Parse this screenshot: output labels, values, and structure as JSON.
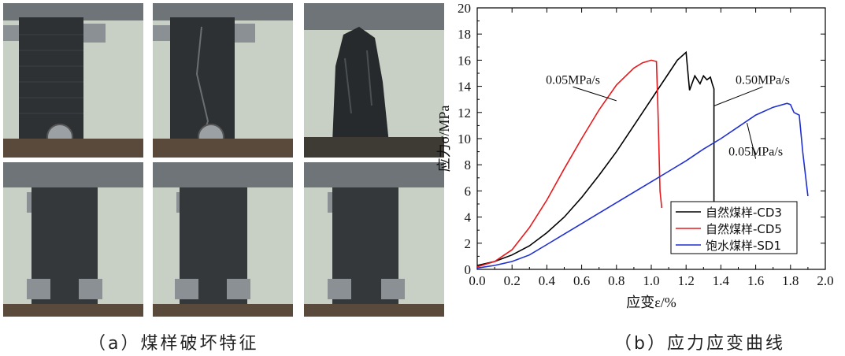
{
  "panel_a": {
    "caption": "（a）煤样破坏特征"
  },
  "panel_b": {
    "caption": "（b）应力应变曲线"
  },
  "colors": {
    "bg_wall": "#c8cfc4",
    "steel": "#6e7478",
    "coal": "#2e3134",
    "base": "#5a4a3c"
  },
  "chart_data": {
    "type": "line",
    "xlabel": "应变ε/%",
    "ylabel": "应力σ/MPa",
    "xlim": [
      0.0,
      2.0
    ],
    "ylim": [
      0,
      20
    ],
    "xticks": [
      "0.0",
      "0.2",
      "0.4",
      "0.6",
      "0.8",
      "1.0",
      "1.2",
      "1.4",
      "1.6",
      "1.8",
      "2.0"
    ],
    "yticks": [
      "0",
      "2",
      "4",
      "6",
      "8",
      "10",
      "12",
      "14",
      "16",
      "18",
      "20"
    ],
    "legend_position": "bottom-right",
    "series": [
      {
        "name": "自然煤样-CD3",
        "color": "#000000",
        "x": [
          0.0,
          0.1,
          0.2,
          0.3,
          0.4,
          0.5,
          0.6,
          0.7,
          0.8,
          0.9,
          1.0,
          1.1,
          1.15,
          1.2,
          1.22,
          1.25,
          1.28,
          1.3,
          1.32,
          1.34,
          1.35,
          1.36,
          1.36
        ],
        "y": [
          0.3,
          0.6,
          1.1,
          1.8,
          2.8,
          4.0,
          5.5,
          7.2,
          9.0,
          11.0,
          13.0,
          15.0,
          16.0,
          16.6,
          13.7,
          14.8,
          14.2,
          14.8,
          14.5,
          14.7,
          14.2,
          13.8,
          5.0
        ]
      },
      {
        "name": "自然煤样-CD5",
        "color": "#e8191c",
        "x": [
          0.0,
          0.1,
          0.2,
          0.3,
          0.4,
          0.5,
          0.6,
          0.7,
          0.8,
          0.9,
          0.95,
          1.0,
          1.03,
          1.04,
          1.05,
          1.06
        ],
        "y": [
          0.2,
          0.6,
          1.5,
          3.2,
          5.3,
          7.7,
          10.0,
          12.2,
          14.1,
          15.4,
          15.8,
          16.0,
          15.9,
          11.5,
          6.0,
          4.7
        ]
      },
      {
        "name": "饱水煤样-SD1",
        "color": "#1f2fd0",
        "x": [
          0.0,
          0.1,
          0.2,
          0.3,
          0.4,
          0.5,
          0.6,
          0.7,
          0.8,
          0.9,
          1.0,
          1.1,
          1.2,
          1.3,
          1.4,
          1.5,
          1.6,
          1.7,
          1.78,
          1.8,
          1.82,
          1.85,
          1.87,
          1.9
        ],
        "y": [
          0.1,
          0.3,
          0.6,
          1.1,
          1.9,
          2.7,
          3.5,
          4.3,
          5.1,
          5.9,
          6.7,
          7.5,
          8.3,
          9.2,
          10.0,
          10.9,
          11.8,
          12.4,
          12.7,
          12.6,
          12.0,
          11.8,
          9.0,
          5.6
        ]
      }
    ],
    "annotations": [
      {
        "text": "0.05MPa/s",
        "x": 0.55,
        "y": 14.2,
        "point_x": 0.8,
        "point_y": 12.9
      },
      {
        "text": "0.50MPa/s",
        "x": 1.64,
        "y": 14.2,
        "point_x": 1.36,
        "point_y": 12.5
      },
      {
        "text": "0.05MPa/s",
        "x": 1.6,
        "y": 8.7,
        "point_x": 1.55,
        "point_y": 11.2
      }
    ]
  }
}
